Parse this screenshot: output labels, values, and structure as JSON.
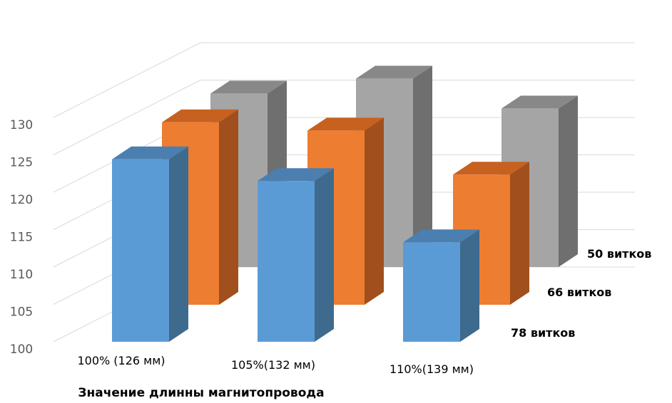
{
  "chart_data": {
    "type": "bar",
    "subtype": "3d-clustered-depth",
    "title": "",
    "xlabel": "Значение длинны магнитопровода",
    "ylabel": "",
    "ylim": [
      100,
      130
    ],
    "yticks": [
      "100",
      "105",
      "110",
      "115",
      "120",
      "125",
      "130"
    ],
    "grid": true,
    "categories": [
      "100% (126 мм)",
      "105%(132 мм)",
      "110%(139 мм)"
    ],
    "series": [
      {
        "name": "78 витков",
        "values": [
          124.4,
          121.5,
          113.3
        ],
        "color": "#5B9BD5"
      },
      {
        "name": "66 витков",
        "values": [
          124.4,
          123.3,
          117.4
        ],
        "color": "#ED7D31"
      },
      {
        "name": "50 витков",
        "values": [
          123.2,
          125.2,
          121.2
        ],
        "color": "#A5A5A5"
      }
    ]
  }
}
